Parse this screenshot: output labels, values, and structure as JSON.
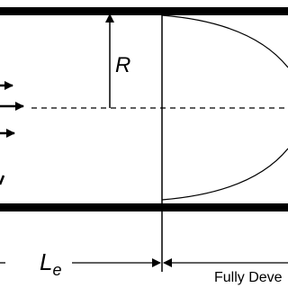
{
  "labels": {
    "radius": "R",
    "entrance_length": {
      "symbol": "L",
      "subscript": "e"
    },
    "region": "Fully Deve"
  }
}
